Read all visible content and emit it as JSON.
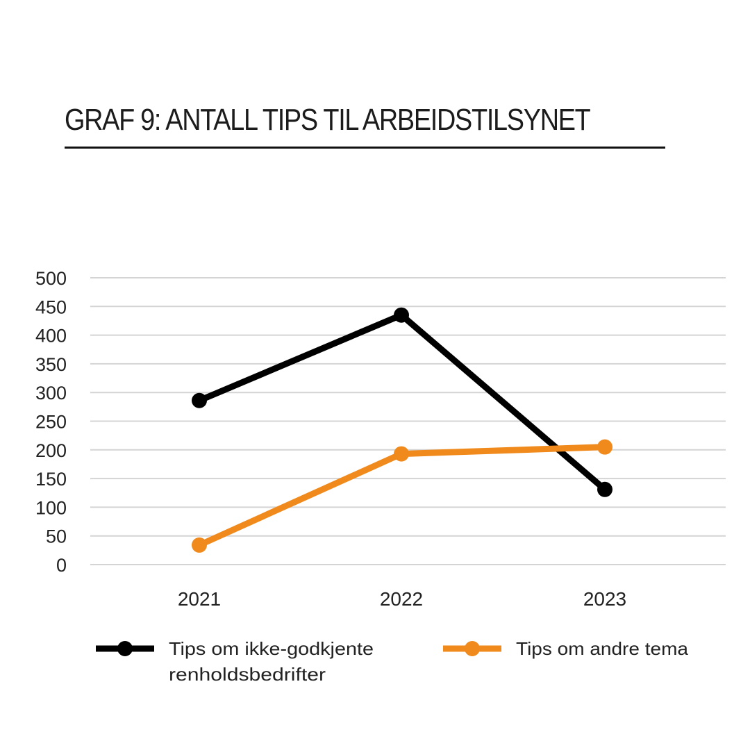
{
  "title": "GRAF 9: ANTALL TIPS TIL ARBEIDSTILSYNET",
  "chart_data": {
    "type": "line",
    "title": "GRAF 9: ANTALL TIPS TIL ARBEIDSTILSYNET",
    "xlabel": "",
    "ylabel": "",
    "categories": [
      "2021",
      "2022",
      "2023"
    ],
    "ylim": [
      0,
      500
    ],
    "yticks": [
      0,
      50,
      100,
      150,
      200,
      250,
      300,
      350,
      400,
      450,
      500
    ],
    "grid": true,
    "legend_position": "bottom",
    "series": [
      {
        "name": "Tips om ikke-godkjente renholdsbedrifter",
        "color": "#000000",
        "values": [
          286,
          435,
          131
        ]
      },
      {
        "name": "Tips om andre tema",
        "color": "#F08A1C",
        "values": [
          34,
          193,
          205
        ]
      }
    ]
  },
  "legend": {
    "series0_line1": "Tips om ikke-godkjente",
    "series0_line2": "renholdsbedrifter",
    "series1_line1": "Tips om andre tema"
  }
}
